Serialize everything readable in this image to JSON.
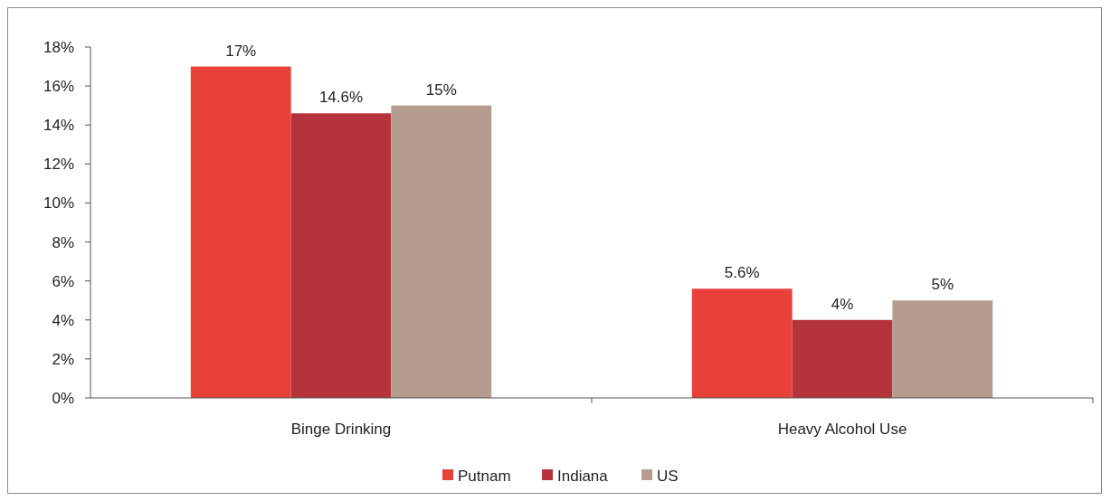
{
  "chart_data": {
    "type": "bar",
    "categories": [
      "Binge Drinking",
      "Heavy Alcohol Use"
    ],
    "series": [
      {
        "name": "Putnam",
        "color": "#e8413a",
        "values": [
          17,
          5.6
        ],
        "value_labels": [
          "17%",
          "5.6%"
        ]
      },
      {
        "name": "Indiana",
        "color": "#b5343c",
        "values": [
          14.6,
          4
        ],
        "value_labels": [
          "14.6%",
          "4%"
        ]
      },
      {
        "name": "US",
        "color": "#b59c8e",
        "values": [
          15,
          5
        ],
        "value_labels": [
          "15%",
          "5%"
        ]
      }
    ],
    "ylim": [
      0,
      18
    ],
    "yticks": [
      {
        "value": 0,
        "label": "0%"
      },
      {
        "value": 2,
        "label": "2%"
      },
      {
        "value": 4,
        "label": "4%"
      },
      {
        "value": 6,
        "label": "6%"
      },
      {
        "value": 8,
        "label": "8%"
      },
      {
        "value": 10,
        "label": "10%"
      },
      {
        "value": 12,
        "label": "12%"
      },
      {
        "value": 14,
        "label": "14%"
      },
      {
        "value": 16,
        "label": "16%"
      },
      {
        "value": 18,
        "label": "18%"
      }
    ],
    "legend": "bottom"
  }
}
